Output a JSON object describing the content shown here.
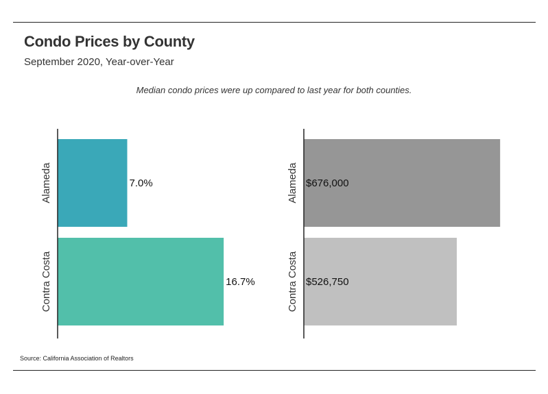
{
  "header": {
    "title": "Condo Prices by County",
    "subtitle": "September 2020, Year-over-Year"
  },
  "annotation": "Median condo prices were up compared to last year for both counties.",
  "footer": {
    "source": "Source:  California Association of Realtors"
  },
  "colors": {
    "left_series": [
      "#3aa8b8",
      "#52bfaa"
    ],
    "right_series": [
      "#969696",
      "#c0c0c0"
    ],
    "axis": "#222222"
  },
  "chart_data": [
    {
      "type": "bar",
      "orientation": "horizontal",
      "categories": [
        "Alameda",
        "Contra Costa"
      ],
      "values": [
        7.0,
        16.7
      ],
      "value_labels": [
        "7.0%",
        "16.7%"
      ],
      "xlim": [
        0,
        20
      ],
      "title": "",
      "xlabel": "",
      "ylabel": "",
      "grid": false
    },
    {
      "type": "bar",
      "orientation": "horizontal",
      "categories": [
        "Alameda",
        "Contra Costa"
      ],
      "values": [
        676000,
        526750
      ],
      "value_labels": [
        "$676,000",
        "$526,750"
      ],
      "xlim": [
        0,
        685000
      ],
      "title": "",
      "xlabel": "",
      "ylabel": "",
      "grid": false
    }
  ]
}
